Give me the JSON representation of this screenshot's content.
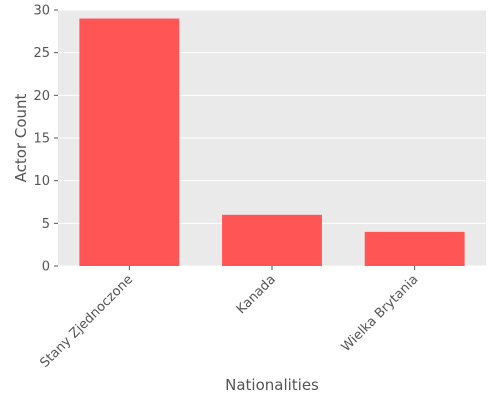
{
  "chart_data": {
    "type": "bar",
    "categories": [
      "Stany Zjednoczone",
      "Kanada",
      "Wielka Brytania"
    ],
    "values": [
      29,
      6,
      4
    ],
    "title": "",
    "xlabel": "Nationalities",
    "ylabel": "Actor Count",
    "ylim": [
      0,
      30
    ],
    "yticks": [
      0,
      5,
      10,
      15,
      20,
      25,
      30
    ],
    "grid": true,
    "legend": "none",
    "colors": {
      "bar": "#ff5555",
      "panel_background": "#eaeaea",
      "grid": "#ffffff",
      "text": "#555555"
    }
  }
}
